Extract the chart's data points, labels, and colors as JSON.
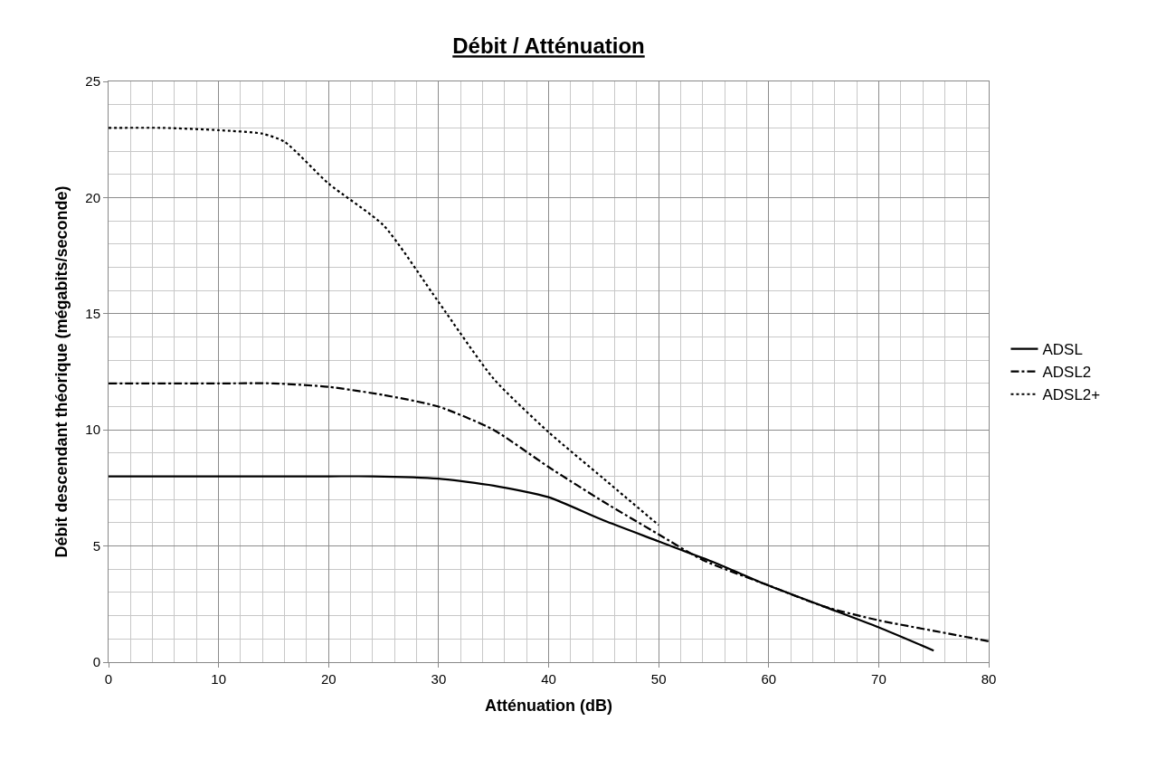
{
  "chart_data": {
    "type": "line",
    "title": "Débit / Atténuation",
    "xlabel": "Atténuation (dB)",
    "ylabel": "Débit descendant théorique (mégabits/seconde)",
    "xlim": [
      0,
      80
    ],
    "xticks": [
      0,
      10,
      20,
      30,
      40,
      50,
      60,
      70,
      80
    ],
    "ylim": [
      0,
      25
    ],
    "yticks": [
      0,
      5,
      10,
      15,
      20,
      25
    ],
    "grid": true,
    "legend": "right",
    "marker": "none",
    "series": [
      {
        "name": "ADSL",
        "color": "#000000",
        "line_style": "solid",
        "x": [
          0,
          10,
          20,
          24,
          30,
          35,
          40,
          45,
          50,
          55,
          60,
          65,
          70,
          75
        ],
        "values": [
          8,
          8,
          8,
          8,
          7.9,
          7.6,
          7.1,
          6.1,
          5.2,
          4.3,
          3.3,
          2.4,
          1.5,
          0.5
        ]
      },
      {
        "name": "ADSL2",
        "color": "#000000",
        "line_style": "dashdot",
        "x": [
          0,
          10,
          15,
          20,
          25,
          30,
          35,
          40,
          45,
          50,
          54,
          60,
          65,
          70,
          75,
          80
        ],
        "values": [
          12,
          12,
          12,
          11.85,
          11.5,
          11,
          10,
          8.4,
          6.9,
          5.5,
          4.4,
          3.3,
          2.4,
          1.8,
          1.35,
          0.9
        ]
      },
      {
        "name": "ADSL2+",
        "color": "#000000",
        "line_style": "dotted",
        "x": [
          0,
          5,
          10,
          14,
          16,
          20,
          25,
          30,
          35,
          40,
          45,
          50
        ],
        "values": [
          23,
          23,
          22.9,
          22.75,
          22.4,
          20.6,
          18.8,
          15.5,
          12.2,
          9.9,
          7.9,
          5.9
        ]
      }
    ]
  }
}
